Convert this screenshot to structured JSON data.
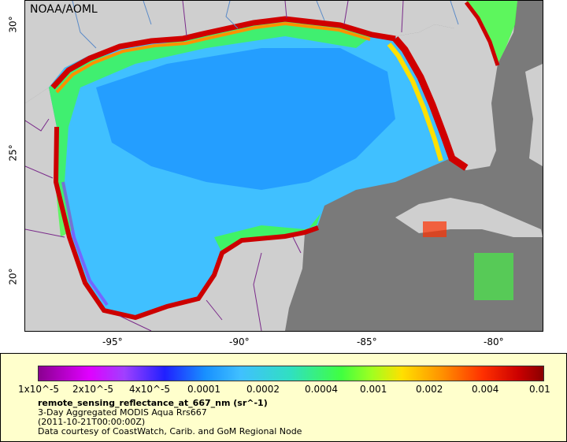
{
  "map": {
    "credit": "NOAA/AOML",
    "land_color": "#cfcfcf",
    "nodata_color": "#7a7a7a",
    "border_color": "#7a2a8a",
    "river_color": "#5a8ac8",
    "longitude_labels": [
      "-95°",
      "-90°",
      "-85°",
      "-80°"
    ],
    "latitude_labels": [
      "30°",
      "25°",
      "20°"
    ]
  },
  "colorbar": {
    "tick_labels": [
      "1x10^-5",
      "2x10^-5",
      "4x10^-5",
      "0.0001",
      "0.0002",
      "0.0004",
      "0.001",
      "0.002",
      "0.004",
      "0.01"
    ],
    "colors": [
      "#8a0090",
      "#e000ff",
      "#2020ff",
      "#40c0ff",
      "#40ff40",
      "#ffe000",
      "#ff3000",
      "#8a0000"
    ]
  },
  "legend": {
    "variable": "remote_sensing_reflectance_at_667_nm (sr^-1)",
    "description": "3-Day Aggregated MODIS Aqua Rrs667",
    "date": "(2011-10-21T00:00:00Z)",
    "courtesy": "Data courtesy of CoastWatch, Carib. and GoM Regional Node"
  }
}
